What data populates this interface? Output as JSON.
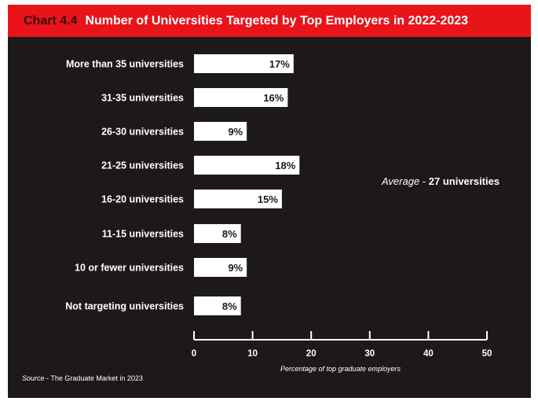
{
  "header": {
    "chart_number": "Chart 4.4",
    "title": "Number of Universities Targeted by Top Employers in 2022-2023",
    "background_color": "#e8141a"
  },
  "annotation": {
    "prefix": "Average",
    "separator": " - ",
    "value": "27 universities"
  },
  "source": {
    "prefix": "Source",
    "separator": " - ",
    "text": "The Graduate Market in 2023"
  },
  "colors": {
    "background": "#1c1918",
    "bar": "#ffffff",
    "text": "#ffffff",
    "bar_label": "#1c1918"
  },
  "chart_data": {
    "type": "bar",
    "orientation": "horizontal",
    "title": "Number of Universities Targeted by Top Employers in 2022-2023",
    "xlabel": "Percentage of top graduate employers",
    "ylabel": "",
    "categories": [
      "More than 35 universities",
      "31-35 universities",
      "26-30 universities",
      "21-25 universities",
      "16-20 universities",
      "11-15 universities",
      "10 or fewer universities",
      "Not targeting universities"
    ],
    "values": [
      17,
      16,
      9,
      18,
      15,
      8,
      9,
      8
    ],
    "value_labels": [
      "17%",
      "16%",
      "9%",
      "18%",
      "15%",
      "8%",
      "9%",
      "8%"
    ],
    "xlim": [
      0,
      50
    ],
    "xticks": [
      0,
      10,
      20,
      30,
      40,
      50
    ],
    "grid": false,
    "legend": "none"
  }
}
